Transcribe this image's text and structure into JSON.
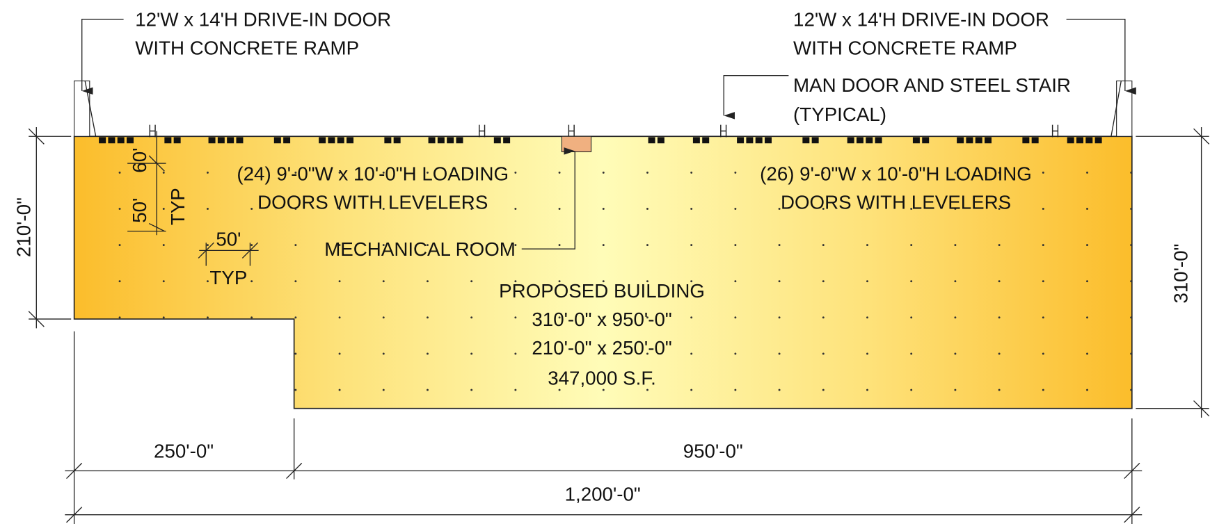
{
  "callouts": {
    "left_drive_in": [
      "12'W x 14'H DRIVE-IN DOOR",
      "WITH CONCRETE RAMP"
    ],
    "right_drive_in": [
      "12'W x 14'H DRIVE-IN DOOR",
      "WITH CONCRETE RAMP"
    ],
    "man_door": [
      "MAN DOOR AND STEEL STAIR",
      "(TYPICAL)"
    ],
    "mechanical_room": "MECHANICAL ROOM"
  },
  "loading_doors": {
    "left": [
      "(24) 9'-0\"W x 10'-0\"H LOADING",
      "DOORS WITH LEVELERS"
    ],
    "right": [
      "(26) 9'-0\"W x 10'-0\"H LOADING",
      "DOORS WITH LEVELERS"
    ]
  },
  "building": {
    "lines": [
      "PROPOSED BUILDING",
      "310'-0\" x 950'-0\"",
      "210'-0\" x 250'-0\"",
      "347,000 S.F."
    ]
  },
  "dimensions": {
    "left_height": "210'-0\"",
    "right_height": "310'-0\"",
    "left_width": "250'-0\"",
    "right_width": "950'-0\"",
    "total_width": "1,200'-0\"",
    "bay_depth": "60'",
    "bay_spacing": "50'",
    "bay_spacing_typ": "TYP",
    "column_spacing": "50'",
    "column_spacing_typ": "TYP"
  }
}
